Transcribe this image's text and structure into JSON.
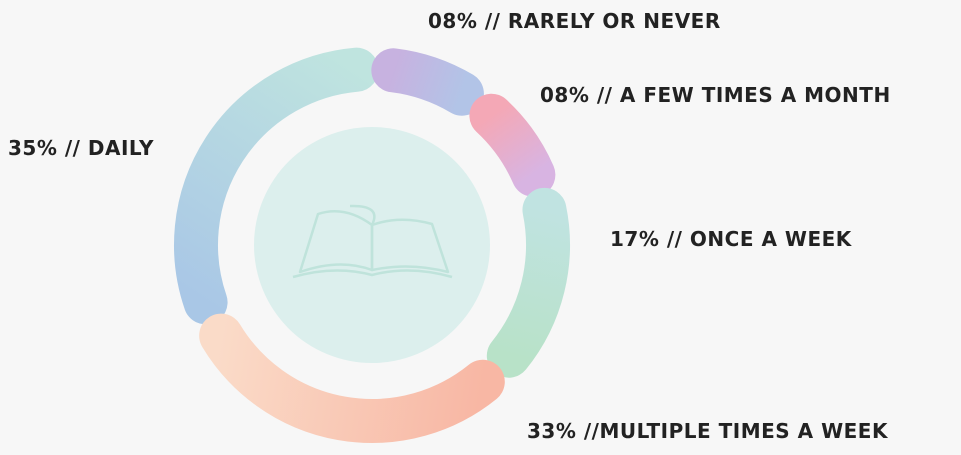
{
  "chart_data": {
    "type": "donut",
    "categories": [
      "DAILY",
      "RARELY OR NEVER",
      "A FEW TIMES A MONTH",
      "ONCE A WEEK",
      "MULTIPLE TIMES A WEEK"
    ],
    "values": [
      35,
      8,
      8,
      17,
      33
    ],
    "value_labels": [
      "35% // DAILY",
      "08% // RARELY OR NEVER",
      "08% // A FEW TIMES A MONTH",
      "17% // ONCE A WEEK",
      "33% //MULTIPLE TIMES A WEEK"
    ],
    "colors": [
      [
        "#a9c7e6",
        "#bfe4df"
      ],
      [
        "#c7b2e0",
        "#b2c4e7"
      ],
      [
        "#f4a8b6",
        "#d8b4e2"
      ],
      [
        "#c0e3e1",
        "#b8e2c8"
      ],
      [
        "#f8b7a4",
        "#fadbc8"
      ]
    ]
  }
}
